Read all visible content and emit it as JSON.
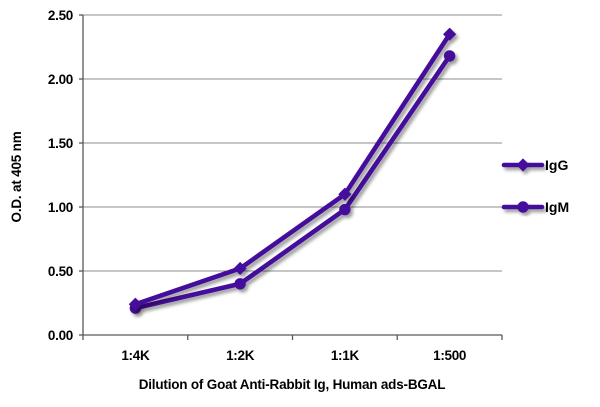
{
  "chart_data": {
    "type": "line",
    "title": "",
    "xlabel": "Dilution of Goat Anti-Rabbit Ig, Human ads-BGAL",
    "ylabel": "O.D. at 405 nm",
    "categories": [
      "1:4K",
      "1:2K",
      "1:1K",
      "1:500"
    ],
    "series": [
      {
        "name": "IgG",
        "marker": "diamond",
        "values": [
          0.24,
          0.52,
          1.1,
          2.35
        ]
      },
      {
        "name": "IgM",
        "marker": "circle",
        "values": [
          0.21,
          0.4,
          0.98,
          2.18
        ]
      }
    ],
    "y_ticks": [
      "0.00",
      "0.50",
      "1.00",
      "1.50",
      "2.00",
      "2.50"
    ],
    "y_tick_values": [
      0.0,
      0.5,
      1.0,
      1.5,
      2.0,
      2.5
    ],
    "ylim": [
      0,
      2.5
    ],
    "grid": true,
    "legend_position": "right",
    "colors": {
      "series": "#44119B",
      "gridline": "#8C8C8C",
      "axis": "#595959",
      "text": "#000000",
      "background": "#FFFFFF",
      "shadow": "#000000"
    }
  }
}
